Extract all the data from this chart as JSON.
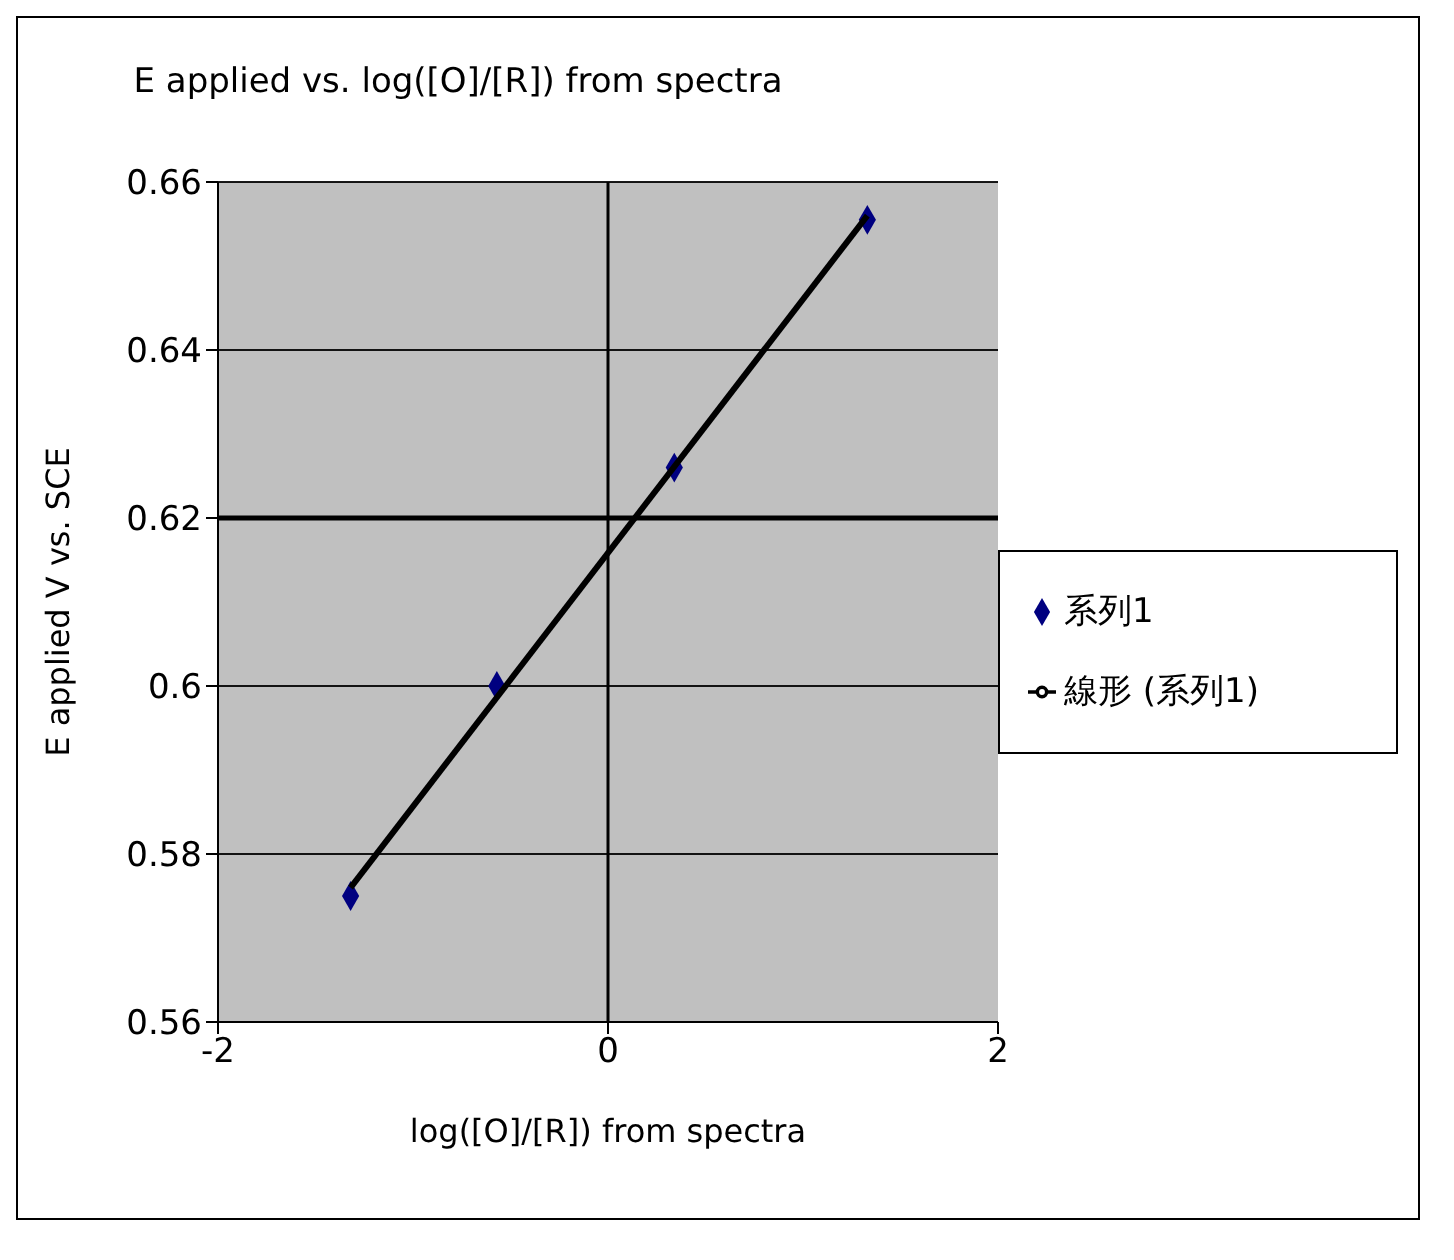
{
  "chart_data": {
    "type": "scatter",
    "title": "E applied vs. log([O]/[R]) from spectra",
    "xlabel": "log([O]/[R]) from spectra",
    "ylabel": "E applied V vs. SCE",
    "series": [
      {
        "name": "系列1",
        "color": "#000080",
        "marker": "diamond",
        "x": [
          -1.32,
          -0.57,
          0.34,
          1.33
        ],
        "values": [
          0.575,
          0.6,
          0.626,
          0.6555
        ]
      },
      {
        "name": "線形 (系列1)",
        "type": "line",
        "color": "#000000",
        "marker": "none",
        "line_style": "solid",
        "x": [
          -1.32,
          1.33
        ],
        "values": [
          0.576,
          0.656
        ]
      }
    ],
    "xlim": [
      -2,
      2
    ],
    "xticks": [
      -2,
      0,
      2
    ],
    "ylim": [
      0.56,
      0.66
    ],
    "yticks": [
      0.56,
      0.58,
      {
        "value": 0.6,
        "label": "0.6"
      },
      0.62,
      0.64,
      0.66
    ],
    "ref_lines": [
      {
        "axis": "x",
        "value": 0,
        "color": "#000000"
      },
      {
        "axis": "y",
        "value": 0.62,
        "color": "#000000"
      }
    ],
    "grid": "y",
    "legend": "right"
  }
}
